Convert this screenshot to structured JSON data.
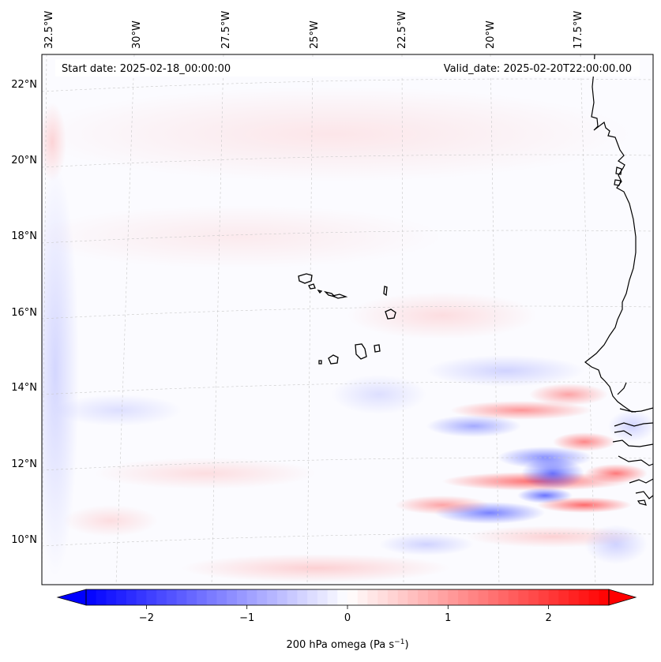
{
  "map": {
    "start_date": "Start date: 2025-02-18_00:00:00",
    "valid_date": "Valid_date: 2025-02-20T22:00:00.00",
    "lon_labels": [
      "32.5°W",
      "30°W",
      "27.5°W",
      "25°W",
      "22.5°W",
      "20°W",
      "17.5°W"
    ],
    "lat_labels": [
      "22°N",
      "20°N",
      "18°N",
      "16°N",
      "14°N",
      "12°N",
      "10°N"
    ],
    "features": [
      "Cabo Verde islands",
      "West African coastline"
    ]
  },
  "colorbar": {
    "label_prefix": "200 hPa omega (Pa s",
    "label_exp": "−1",
    "label_suffix": ")",
    "ticks": [
      {
        "value": -2,
        "label": "−2"
      },
      {
        "value": -1,
        "label": "−1"
      },
      {
        "value": 0,
        "label": "0"
      },
      {
        "value": 1,
        "label": "1"
      },
      {
        "value": 2,
        "label": "2"
      }
    ],
    "vmin": -2.6,
    "vmax": 2.6,
    "colors": {
      "negative": "#0000ff",
      "zero": "#ffffff",
      "positive": "#ff0000"
    }
  }
}
